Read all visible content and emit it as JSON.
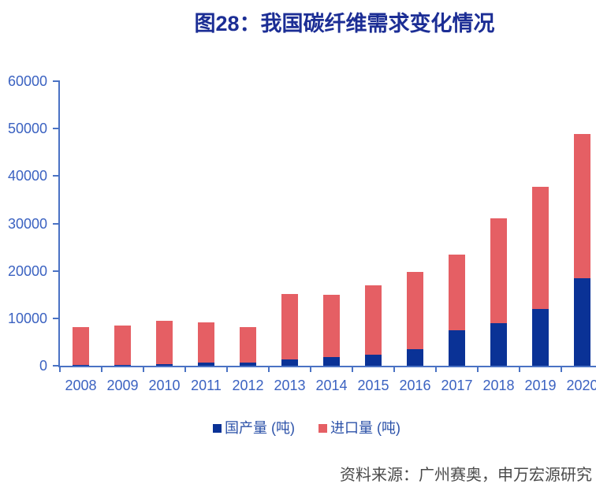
{
  "header": {
    "title": "图28：我国碳纤维需求变化情况"
  },
  "footer": {
    "source": "资料来源：广州赛奥，申万宏源研究"
  },
  "colors": {
    "title": "#1C2E95",
    "axis_line": "#4A72C4",
    "axis_label": "#3B62C1",
    "legend_text": "#2B51A8",
    "source_text": "#4A4A4A",
    "domestic_bar": "#0A3296",
    "import_bar": "#E55F64"
  },
  "chart_data": {
    "type": "bar",
    "stacked": true,
    "title": "图28：我国碳纤维需求变化情况",
    "xlabel": "",
    "ylabel": "",
    "categories": [
      2008,
      2009,
      2010,
      2011,
      2012,
      2013,
      2014,
      2015,
      2016,
      2017,
      2018,
      2019,
      2020
    ],
    "series": [
      {
        "name": "国产量 (吨)",
        "key": "domestic",
        "color": "#0A3296",
        "values": [
          100,
          100,
          400,
          600,
          600,
          1400,
          1800,
          2400,
          3500,
          7500,
          9000,
          12000,
          18400
        ]
      },
      {
        "name": "进口量 (吨)",
        "key": "import",
        "color": "#E55F64",
        "values": [
          8100,
          8400,
          9100,
          8600,
          7600,
          13700,
          13100,
          14600,
          16200,
          16000,
          22000,
          25800,
          30400
        ]
      }
    ],
    "totals": [
      8200,
      8500,
      9500,
      9200,
      8200,
      15100,
      14900,
      17000,
      19700,
      23500,
      31000,
      37800,
      48800
    ],
    "ylim": [
      0,
      60000
    ],
    "yticks": [
      0,
      10000,
      20000,
      30000,
      40000,
      50000,
      60000
    ],
    "grid": false,
    "legend_position": "bottom"
  }
}
